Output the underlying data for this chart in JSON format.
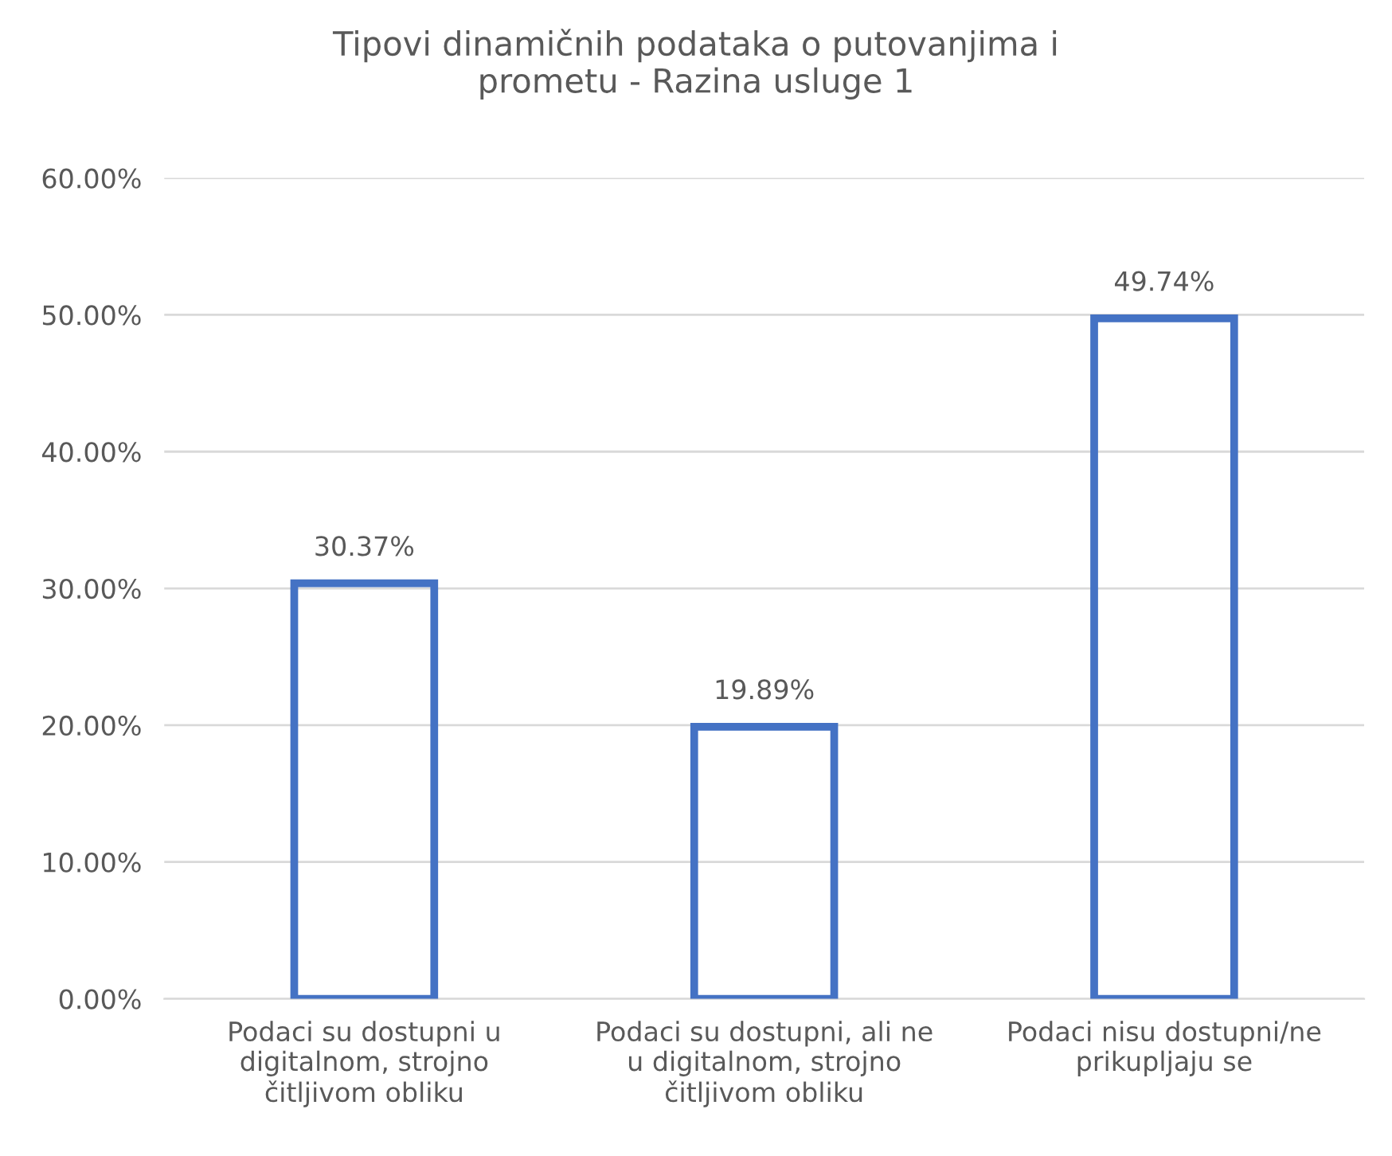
{
  "chart_data": {
    "type": "bar",
    "title": "Tipovi dinamičnih podataka o putovanjima i\nprometu - Razina usluge 1",
    "categories": [
      "Podaci su dostupni u\ndigitalnom, strojno\nčitljivom obliku",
      "Podaci su dostupni, ali ne\nu digitalnom, strojno\nčitljivom obliku",
      "Podaci nisu dostupni/ne\nprikupljaju se"
    ],
    "values": [
      30.37,
      19.89,
      49.74
    ],
    "value_labels": [
      "30.37%",
      "19.89%",
      "49.74%"
    ],
    "color": "#4472c4",
    "ylim": [
      0,
      60
    ],
    "yticks": [
      {
        "value": 0,
        "label": "0.00%"
      },
      {
        "value": 10,
        "label": "10.00%"
      },
      {
        "value": 20,
        "label": "20.00%"
      },
      {
        "value": 30,
        "label": "30.00%"
      },
      {
        "value": 40,
        "label": "40.00%"
      },
      {
        "value": 50,
        "label": "50.00%"
      },
      {
        "value": 60,
        "label": "60.00%"
      }
    ],
    "grid": "y",
    "legend": false
  }
}
